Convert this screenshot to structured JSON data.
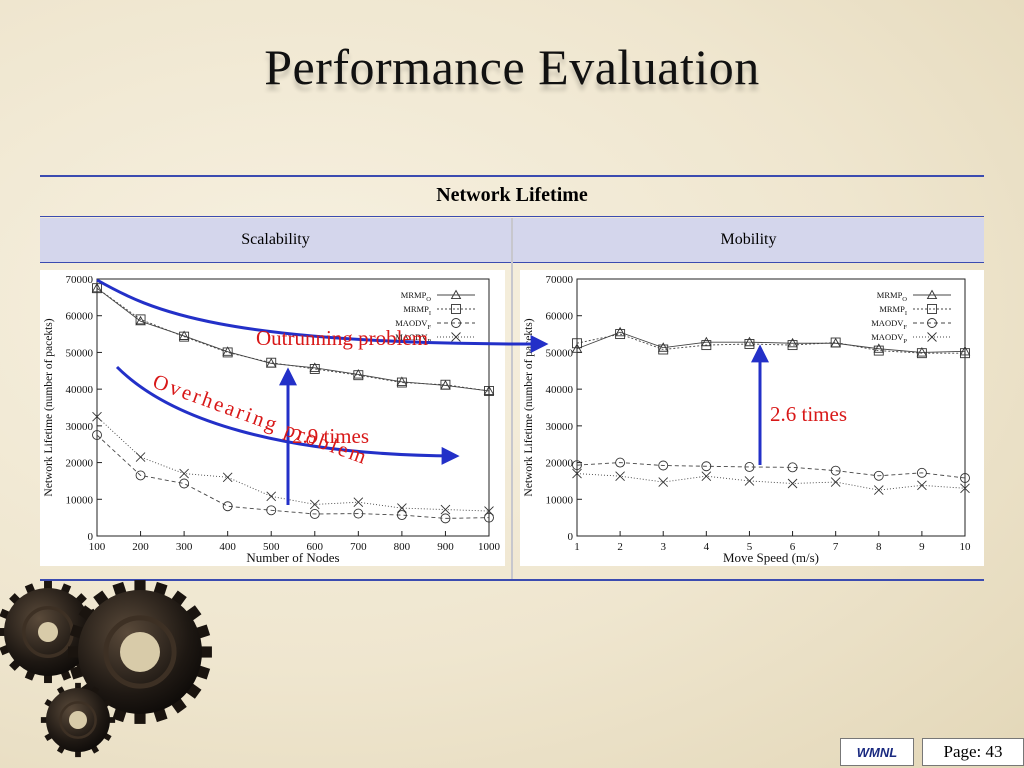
{
  "slide": {
    "title": "Performance Evaluation"
  },
  "table": {
    "header": "Network Lifetime",
    "columns": [
      "Scalability",
      "Mobility"
    ]
  },
  "annotations": {
    "outrunning": "Outrunning problem",
    "overhearing": "Overhearing problem",
    "times_left": "2.9 times",
    "times_right": "2.6 times",
    "colors": {
      "red": "#d81818",
      "blue": "#2330c8"
    }
  },
  "footer": {
    "brand": "WMNL",
    "page": "Page: 43"
  },
  "chart_data": [
    {
      "type": "line",
      "xlabel": "Number of Nodes",
      "ylabel": "Network Lifetime (number of pacekts)",
      "x": [
        100,
        200,
        300,
        400,
        500,
        600,
        700,
        800,
        900,
        1000
      ],
      "xticks": [
        "100",
        "200",
        "300",
        "400",
        "500",
        "600",
        "700",
        "800",
        "900",
        "1000"
      ],
      "ylim": [
        0,
        70000
      ],
      "yticks": [
        "0",
        "10000",
        "20000",
        "30000",
        "40000",
        "50000",
        "60000",
        "70000"
      ],
      "legend_position": "top-right",
      "series": [
        {
          "name": "MRMPO",
          "base": "MRMP",
          "sub": "O",
          "marker": "triangle",
          "dash": "",
          "values": [
            67500,
            58500,
            54500,
            50200,
            47000,
            45800,
            44000,
            42000,
            41000,
            39500
          ]
        },
        {
          "name": "MRMPI",
          "base": "MRMP",
          "sub": "I",
          "marker": "square",
          "dash": "2,2",
          "values": [
            67500,
            59000,
            54300,
            50000,
            47200,
            45500,
            43800,
            41800,
            41200,
            39500
          ]
        },
        {
          "name": "MAODVF",
          "base": "MAODV",
          "sub": "F",
          "marker": "circle",
          "dash": "4,3",
          "values": [
            27500,
            16500,
            14300,
            8100,
            7000,
            6000,
            6100,
            5700,
            4800,
            5000
          ]
        },
        {
          "name": "MAODVP",
          "base": "MAODV",
          "sub": "P",
          "marker": "x",
          "dash": "1,2",
          "values": [
            32500,
            21500,
            17000,
            16000,
            10800,
            8600,
            9200,
            7600,
            7200,
            6800
          ]
        }
      ]
    },
    {
      "type": "line",
      "xlabel": "Move Speed (m/s)",
      "ylabel": "Network Lifetime (number of pacekts)",
      "x": [
        1,
        2,
        3,
        4,
        5,
        6,
        7,
        8,
        9,
        10
      ],
      "xticks": [
        "1",
        "2",
        "3",
        "4",
        "5",
        "6",
        "7",
        "8",
        "9",
        "10"
      ],
      "ylim": [
        0,
        70000
      ],
      "yticks": [
        "0",
        "10000",
        "20000",
        "30000",
        "40000",
        "50000",
        "60000",
        "70000"
      ],
      "legend_position": "top-right",
      "series": [
        {
          "name": "MRMPO",
          "base": "MRMP",
          "sub": "O",
          "marker": "triangle",
          "dash": "",
          "values": [
            51000,
            55500,
            51300,
            52800,
            52800,
            52500,
            52500,
            51000,
            50000,
            50300
          ]
        },
        {
          "name": "MRMPI",
          "base": "MRMP",
          "sub": "I",
          "marker": "square",
          "dash": "2,2",
          "values": [
            52500,
            55000,
            50800,
            52000,
            52300,
            52000,
            52700,
            50500,
            49800,
            49800
          ]
        },
        {
          "name": "MAODVF",
          "base": "MAODV",
          "sub": "F",
          "marker": "circle",
          "dash": "4,3",
          "values": [
            19300,
            20000,
            19200,
            19000,
            18800,
            18700,
            17800,
            16400,
            17200,
            15800
          ]
        },
        {
          "name": "MAODVP",
          "base": "MAODV",
          "sub": "P",
          "marker": "x",
          "dash": "1,2",
          "values": [
            17000,
            16300,
            14700,
            16300,
            15000,
            14300,
            14700,
            12500,
            13800,
            13000
          ]
        }
      ]
    }
  ]
}
